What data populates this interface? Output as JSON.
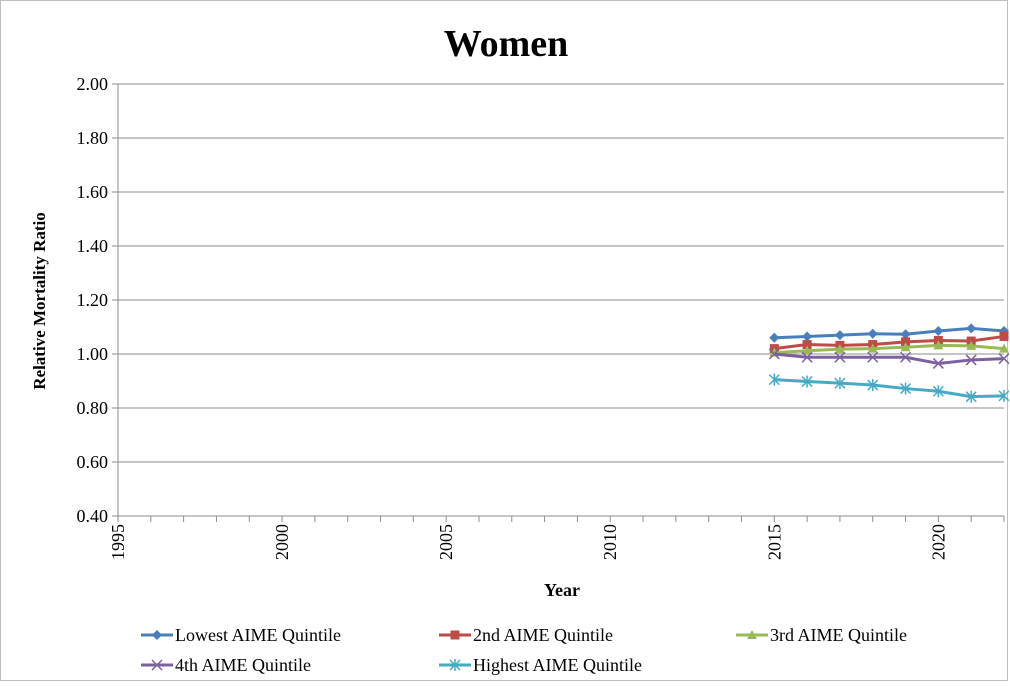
{
  "chart_data": {
    "type": "line",
    "title": "Women",
    "xlabel": "Year",
    "ylabel": "Relative Mortality Ratio",
    "xlim": [
      1995,
      2022
    ],
    "ylim": [
      0.4,
      2.0
    ],
    "x_ticks": [
      "1995",
      "2000",
      "2005",
      "2010",
      "2015",
      "2020"
    ],
    "y_ticks": [
      "0.40",
      "0.60",
      "0.80",
      "1.00",
      "1.20",
      "1.40",
      "1.60",
      "1.80",
      "2.00"
    ],
    "grid": "horizontal",
    "legend_position": "bottom",
    "x": [
      2015,
      2016,
      2017,
      2018,
      2019,
      2020,
      2021,
      2022
    ],
    "series": [
      {
        "name": "Lowest AIME Quintile",
        "color": "#4a7ebb",
        "marker": "diamond",
        "values": [
          1.06,
          1.065,
          1.07,
          1.075,
          1.073,
          1.085,
          1.095,
          1.085
        ]
      },
      {
        "name": "2nd AIME Quintile",
        "color": "#be4b48",
        "marker": "square",
        "values": [
          1.02,
          1.035,
          1.032,
          1.035,
          1.045,
          1.05,
          1.048,
          1.065
        ]
      },
      {
        "name": "3rd AIME Quintile",
        "color": "#98b954",
        "marker": "triangle",
        "values": [
          1.005,
          1.012,
          1.018,
          1.02,
          1.025,
          1.032,
          1.03,
          1.02
        ]
      },
      {
        "name": "4th AIME Quintile",
        "color": "#7d60a0",
        "marker": "x",
        "values": [
          1.0,
          0.988,
          0.988,
          0.988,
          0.988,
          0.965,
          0.978,
          0.983
        ]
      },
      {
        "name": "Highest AIME Quintile",
        "color": "#46aac5",
        "marker": "star",
        "values": [
          0.905,
          0.898,
          0.892,
          0.885,
          0.872,
          0.862,
          0.842,
          0.845
        ]
      }
    ]
  }
}
